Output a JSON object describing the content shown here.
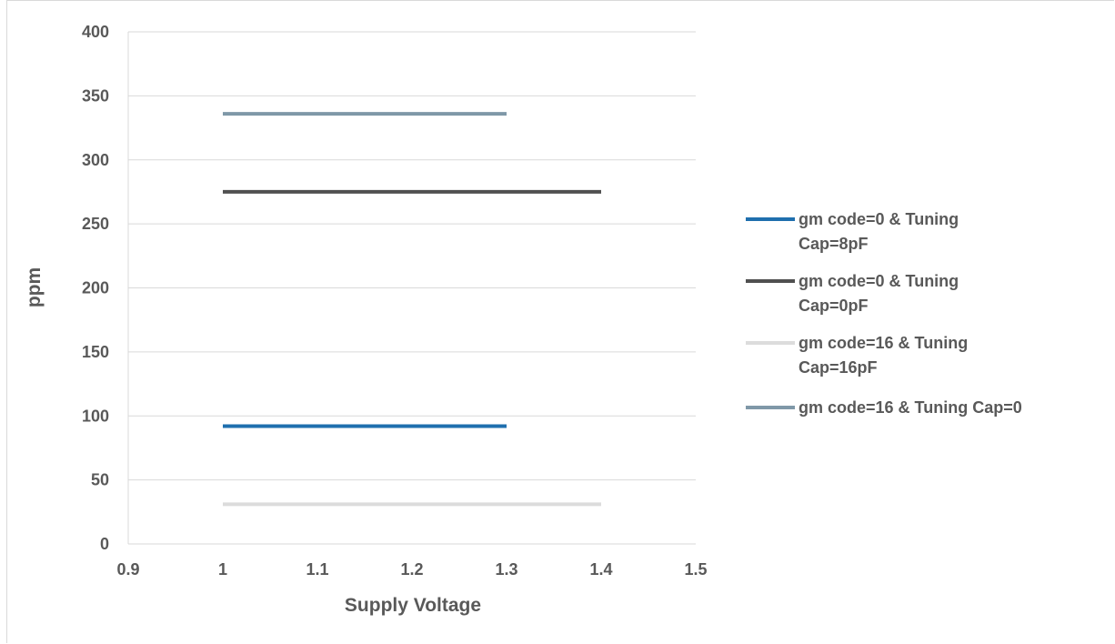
{
  "chart_data": {
    "type": "line",
    "title": "",
    "xlabel": "Supply Voltage",
    "ylabel": "ppm",
    "xlim": [
      0.9,
      1.5
    ],
    "ylim": [
      0,
      400
    ],
    "x_ticks": [
      "0.9",
      "1",
      "1.1",
      "1.2",
      "1.3",
      "1.4",
      "1.5"
    ],
    "y_ticks": [
      "0",
      "50",
      "100",
      "150",
      "200",
      "250",
      "300",
      "350",
      "400"
    ],
    "grid": "horizontal",
    "legend_position": "right",
    "series": [
      {
        "name": "gm code=0 & Tuning Cap=8pF",
        "legend_lines": [
          "gm code=0 & Tuning",
          "Cap=8pF"
        ],
        "color": "#1f6fae",
        "x": [
          1.0,
          1.1,
          1.2,
          1.3
        ],
        "y": [
          92,
          92,
          92,
          92
        ]
      },
      {
        "name": "gm code=0 & Tuning Cap=0pF",
        "legend_lines": [
          "gm code=0 & Tuning",
          "Cap=0pF"
        ],
        "color": "#505050",
        "x": [
          1.0,
          1.1,
          1.2,
          1.3,
          1.4
        ],
        "y": [
          275,
          275,
          275,
          275,
          275
        ]
      },
      {
        "name": "gm code=16 & Tuning Cap=16pF",
        "legend_lines": [
          "gm code=16 & Tuning",
          "Cap=16pF"
        ],
        "color": "#dcdcdc",
        "x": [
          1.0,
          1.1,
          1.2,
          1.3,
          1.4
        ],
        "y": [
          31,
          31,
          31,
          31,
          31
        ]
      },
      {
        "name": "gm code=16 & Tuning Cap=0",
        "legend_lines": [
          "gm code=16 & Tuning Cap=0"
        ],
        "color": "#7f98a8",
        "x": [
          1.0,
          1.1,
          1.2,
          1.3
        ],
        "y": [
          336,
          336,
          336,
          336
        ]
      }
    ]
  }
}
